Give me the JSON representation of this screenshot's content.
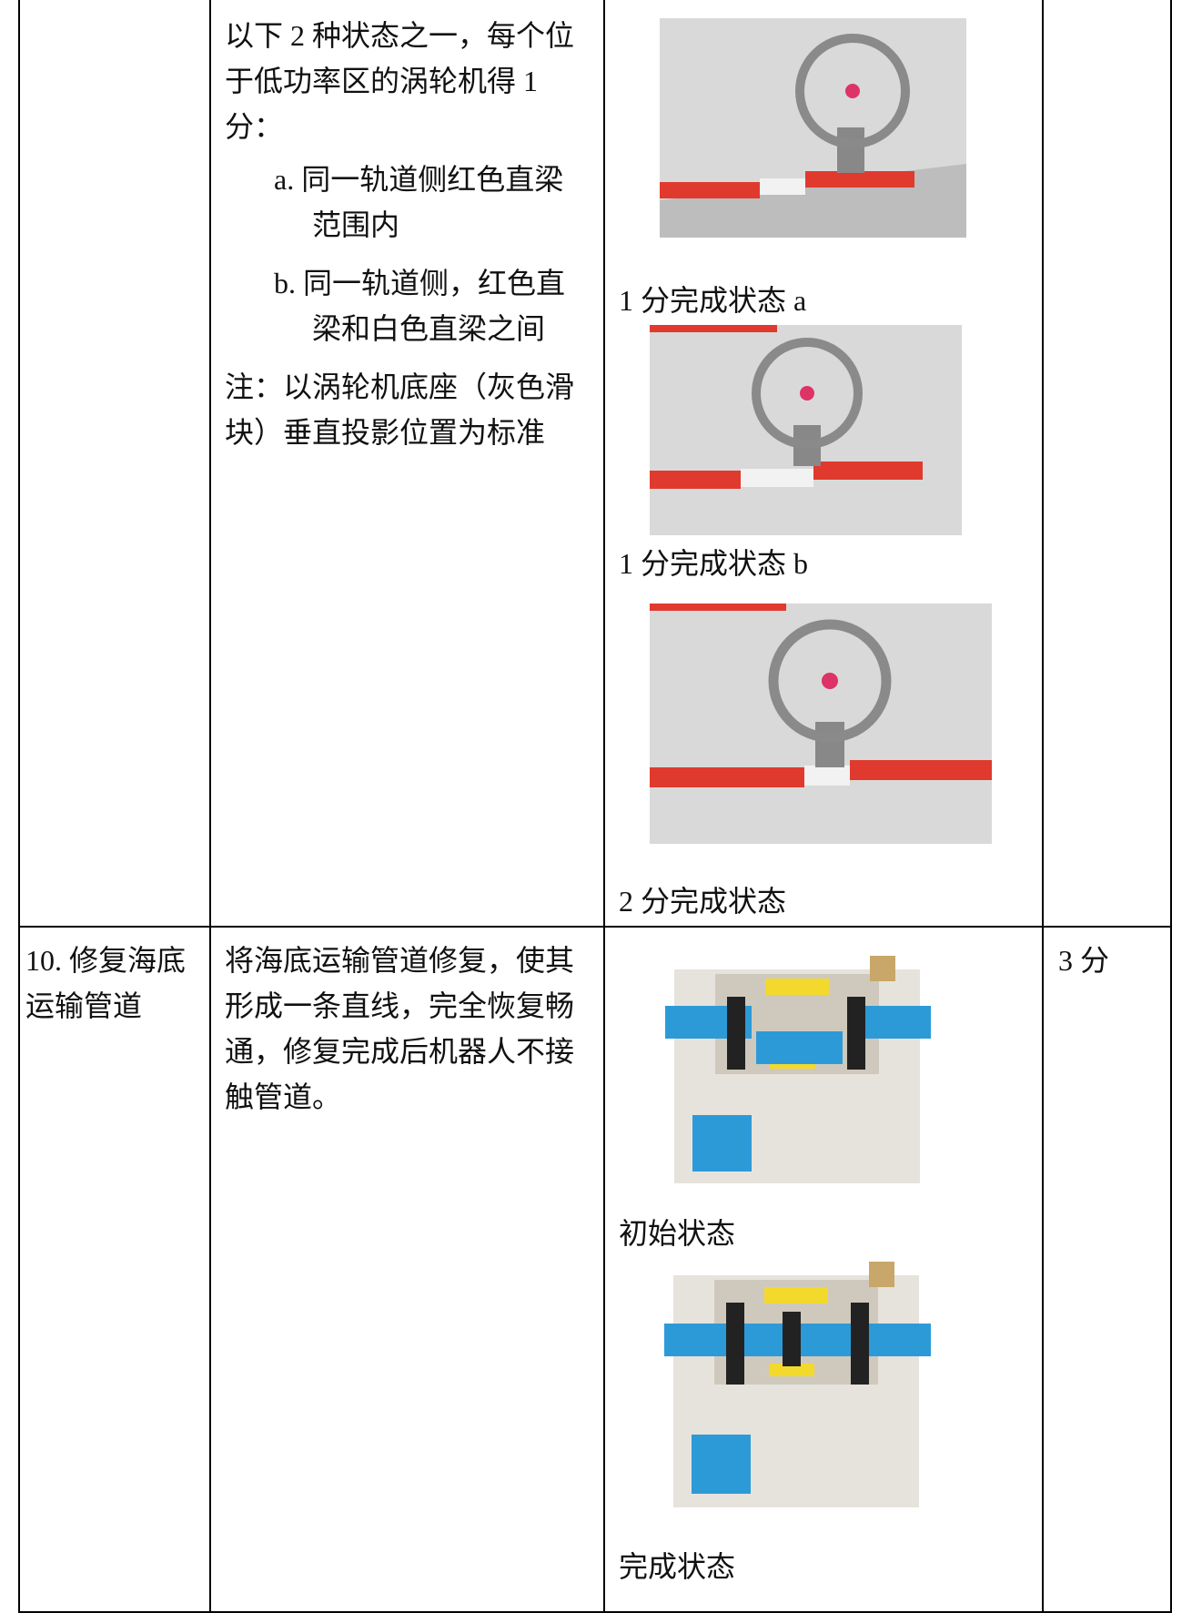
{
  "table": {
    "rows": [
      {
        "description": {
          "intro": "以下 2 种状态之一，每个位于低功率区的涡轮机得 1 分：",
          "items": [
            "a. 同一轨道侧红色直梁范围内",
            "b. 同一轨道侧，红色直梁和白色直梁之间"
          ],
          "note": "注：以涡轮机底座（灰色滑块）垂直投影位置为标准"
        },
        "captions": [
          "1 分完成状态 a",
          "1 分完成状态 b",
          "2 分完成状态"
        ]
      },
      {
        "item": "10. 修复海底运输管道",
        "description": {
          "intro": "将海底运输管道修复，使其形成一条直线，完全恢复畅通，修复完成后机器人不接触管道。"
        },
        "captions": [
          "初始状态",
          "完成状态"
        ],
        "score": "3 分"
      }
    ]
  }
}
